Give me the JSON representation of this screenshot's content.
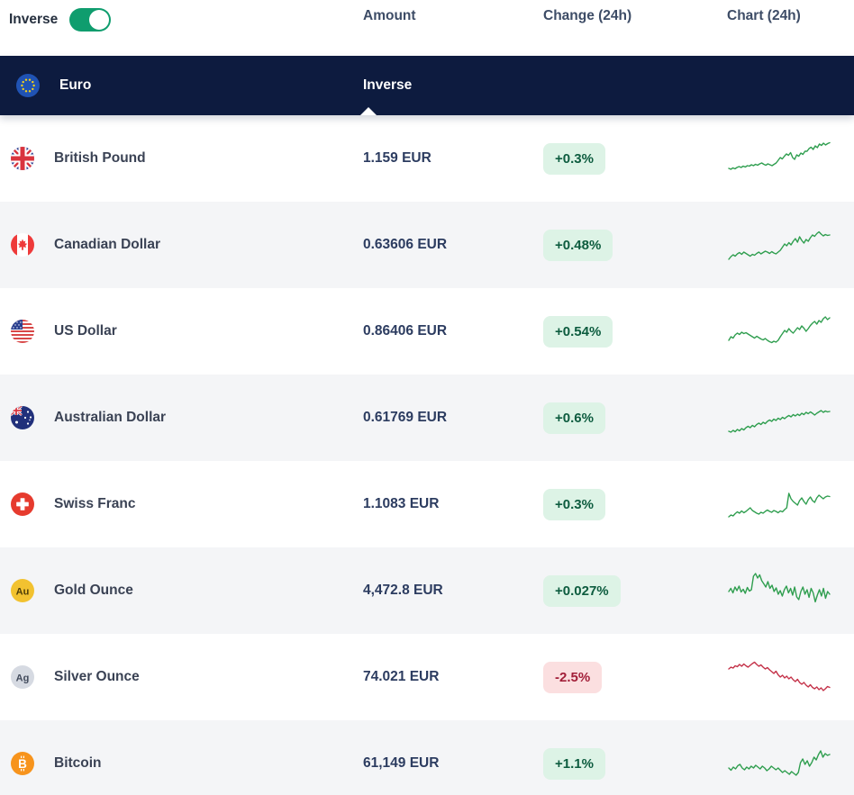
{
  "controls": {
    "inverse_label": "Inverse",
    "inverse_toggle_on": true
  },
  "columns": {
    "amount": "Amount",
    "change": "Change (24h)",
    "chart": "Chart (24h)"
  },
  "base_row": {
    "name": "Euro",
    "icon": "eu-flag-icon",
    "column_value": "Inverse"
  },
  "colors": {
    "dark_bar": "#0d1b3f",
    "toggle_on": "#0f9d6e",
    "row_alt": "#f4f5f7",
    "positive_badge_bg": "#ddf3e6",
    "positive_badge_text": "#0d5c3f",
    "negative_badge_bg": "#fbdfe0",
    "negative_badge_text": "#a21e38",
    "spark_up": "#2f9e4f",
    "spark_down": "#c43148"
  },
  "table": {
    "rows": [
      {
        "name": "British Pound",
        "icon": "gb-flag-icon",
        "amount": "1.159 EUR",
        "change": "+0.3%",
        "direction": "up",
        "spark": [
          28,
          26,
          29,
          27,
          30,
          32,
          30,
          33,
          31,
          34,
          33,
          36,
          34,
          37,
          35,
          38,
          40,
          37,
          35,
          38,
          36,
          34,
          37,
          40,
          46,
          52,
          49,
          55,
          60,
          57,
          63,
          52,
          48,
          58,
          55,
          62,
          59,
          66,
          66,
          72,
          75,
          70,
          78,
          74,
          82,
          79,
          84,
          80,
          83,
          85
        ]
      },
      {
        "name": "Canadian Dollar",
        "icon": "ca-flag-icon",
        "amount": "0.63606 EUR",
        "change": "+0.48%",
        "direction": "up",
        "spark": [
          18,
          24,
          28,
          25,
          30,
          33,
          29,
          34,
          31,
          28,
          25,
          29,
          27,
          31,
          34,
          30,
          33,
          36,
          34,
          31,
          35,
          32,
          30,
          34,
          38,
          45,
          52,
          48,
          55,
          50,
          58,
          64,
          56,
          68,
          60,
          54,
          62,
          58,
          66,
          72,
          69,
          75,
          79,
          74,
          70,
          73,
          71,
          72
        ]
      },
      {
        "name": "US Dollar",
        "icon": "us-flag-icon",
        "amount": "0.86406 EUR",
        "change": "+0.54%",
        "direction": "up",
        "spark": [
          30,
          38,
          35,
          42,
          46,
          43,
          48,
          45,
          47,
          44,
          41,
          38,
          35,
          39,
          36,
          33,
          31,
          34,
          30,
          27,
          25,
          28,
          26,
          30,
          38,
          45,
          52,
          48,
          56,
          50,
          46,
          52,
          58,
          54,
          62,
          57,
          50,
          56,
          63,
          68,
          72,
          66,
          74,
          70,
          78,
          82,
          76,
          80
        ]
      },
      {
        "name": "Australian Dollar",
        "icon": "au-flag-icon",
        "amount": "0.61769 EUR",
        "change": "+0.6%",
        "direction": "up",
        "spark": [
          20,
          18,
          22,
          19,
          24,
          21,
          26,
          23,
          28,
          31,
          28,
          33,
          30,
          35,
          38,
          35,
          40,
          37,
          42,
          45,
          42,
          47,
          44,
          49,
          46,
          51,
          48,
          52,
          55,
          52,
          57,
          54,
          58,
          55,
          60,
          57,
          62,
          59,
          63,
          60,
          56,
          60,
          63,
          66,
          62,
          65,
          63,
          64
        ]
      },
      {
        "name": "Swiss Franc",
        "icon": "ch-flag-icon",
        "amount": "1.1083 EUR",
        "change": "+0.3%",
        "direction": "up",
        "spark": [
          22,
          26,
          24,
          29,
          33,
          30,
          35,
          31,
          34,
          38,
          42,
          36,
          33,
          30,
          28,
          32,
          30,
          34,
          37,
          34,
          32,
          36,
          34,
          31,
          35,
          33,
          38,
          42,
          74,
          62,
          56,
          52,
          48,
          58,
          64,
          56,
          50,
          60,
          66,
          58,
          54,
          64,
          70,
          66,
          62,
          66,
          68,
          67
        ]
      },
      {
        "name": "Gold Ounce",
        "icon": "gold-icon",
        "amount": "4,472.8 EUR",
        "change": "+0.027%",
        "direction": "up",
        "spark": [
          48,
          55,
          45,
          58,
          50,
          60,
          47,
          53,
          44,
          57,
          49,
          52,
          82,
          88,
          78,
          85,
          72,
          65,
          58,
          70,
          55,
          62,
          48,
          56,
          42,
          50,
          38,
          52,
          60,
          45,
          55,
          40,
          58,
          36,
          30,
          48,
          58,
          42,
          52,
          35,
          55,
          45,
          25,
          40,
          52,
          38,
          55,
          33,
          48,
          42
        ]
      },
      {
        "name": "Silver Ounce",
        "icon": "silver-icon",
        "amount": "74.021 EUR",
        "change": "-2.5%",
        "direction": "down",
        "spark": [
          68,
          72,
          70,
          75,
          73,
          78,
          74,
          79,
          75,
          72,
          76,
          80,
          83,
          78,
          74,
          77,
          72,
          68,
          71,
          66,
          62,
          58,
          63,
          55,
          50,
          54,
          48,
          52,
          46,
          50,
          44,
          40,
          45,
          38,
          34,
          38,
          32,
          28,
          33,
          27,
          24,
          28,
          22,
          26,
          20,
          24,
          29,
          27
        ]
      },
      {
        "name": "Bitcoin",
        "icon": "btc-icon",
        "amount": "61,149 EUR",
        "change": "+1.1%",
        "direction": "up",
        "spark": [
          40,
          35,
          42,
          38,
          45,
          48,
          40,
          36,
          42,
          38,
          44,
          40,
          46,
          42,
          38,
          44,
          40,
          34,
          38,
          44,
          40,
          36,
          40,
          35,
          30,
          34,
          30,
          26,
          32,
          28,
          24,
          30,
          52,
          60,
          48,
          56,
          44,
          52,
          64,
          58,
          70,
          78,
          64,
          72,
          68,
          70
        ]
      }
    ]
  }
}
